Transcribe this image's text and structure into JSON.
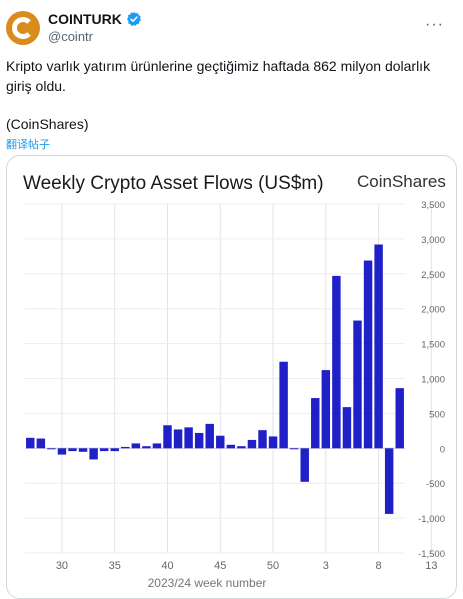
{
  "tweet": {
    "display_name": "COINTURK",
    "handle": "@cointr",
    "more_label": "···",
    "text": "Kripto varlık yatırım ürünlerine geçtiğimiz haftada 862 milyon dolarlık giriş oldu.",
    "source": "(CoinShares)",
    "translate_label": "翻译帖子",
    "verified_color": "#1d9bf0"
  },
  "chart_data": {
    "type": "bar",
    "title": "Weekly Crypto Asset Flows (US$m)",
    "brand": "CoinShares",
    "xlabel": "2023/24 week number",
    "ylabel": "",
    "ylim": [
      -1500,
      3500
    ],
    "yticks": [
      3500,
      3000,
      2500,
      2000,
      1500,
      1000,
      500,
      0,
      -500,
      -1000,
      -1500
    ],
    "ytick_labels": [
      "3,500",
      "3,000",
      "2,500",
      "2,000",
      "1,500",
      "1,000",
      "500",
      "0",
      "-500",
      "-1,000",
      "-1,500"
    ],
    "xticks": [
      {
        "label": "30",
        "index": 3
      },
      {
        "label": "35",
        "index": 8
      },
      {
        "label": "40",
        "index": 13
      },
      {
        "label": "45",
        "index": 18
      },
      {
        "label": "50",
        "index": 23
      },
      {
        "label": "3",
        "index": 28
      },
      {
        "label": "8",
        "index": 33
      },
      {
        "label": "13",
        "index": 38
      }
    ],
    "bar_color": "#2020c8",
    "grid": true,
    "series": [
      {
        "values": [
          150,
          140,
          -10,
          -90,
          -40,
          -50,
          -160,
          -40,
          -40,
          20,
          70,
          30,
          70,
          330,
          270,
          300,
          220,
          350,
          180,
          50,
          30,
          120,
          260,
          170,
          1240,
          -10,
          -480,
          720,
          1120,
          2470,
          590,
          1830,
          2690,
          2920,
          -940,
          862
        ]
      }
    ]
  }
}
